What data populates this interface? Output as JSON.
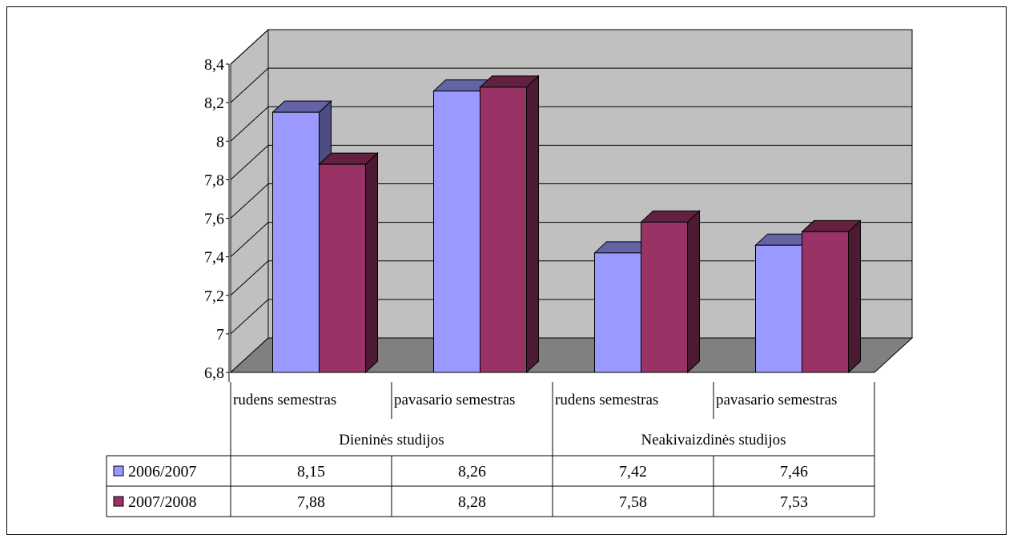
{
  "chart_data": {
    "type": "bar",
    "subtype": "3d-clustered-column-with-data-table",
    "groups": [
      {
        "label": "Dieninės studijos",
        "categories": [
          "rudens semestras",
          "pavasario semestras"
        ]
      },
      {
        "label": "Neakivaizdinės studijos",
        "categories": [
          "rudens semestras",
          "pavasario semestras"
        ]
      }
    ],
    "categories": [
      "rudens semestras",
      "pavasario semestras",
      "rudens semestras",
      "pavasario semestras"
    ],
    "series": [
      {
        "name": "2006/2007",
        "values": [
          8.15,
          8.26,
          7.42,
          7.46
        ],
        "labels": [
          "8,15",
          "8,26",
          "7,42",
          "7,46"
        ],
        "color": "#9999ff"
      },
      {
        "name": "2007/2008",
        "values": [
          7.88,
          8.28,
          7.58,
          7.53
        ],
        "labels": [
          "7,88",
          "8,28",
          "7,58",
          "7,53"
        ],
        "color": "#993366"
      }
    ],
    "ylim": [
      6.8,
      8.4
    ],
    "yticks": [
      6.8,
      7,
      7.2,
      7.4,
      7.6,
      7.8,
      8,
      8.2,
      8.4
    ],
    "ytick_labels": [
      "6,8",
      "7",
      "7,2",
      "7,4",
      "7,6",
      "7,8",
      "8",
      "8,2",
      "8,4"
    ],
    "grid": true,
    "wall_color": "#c0c0c0",
    "floor_color": "#808080",
    "legend": "data-table-left"
  }
}
